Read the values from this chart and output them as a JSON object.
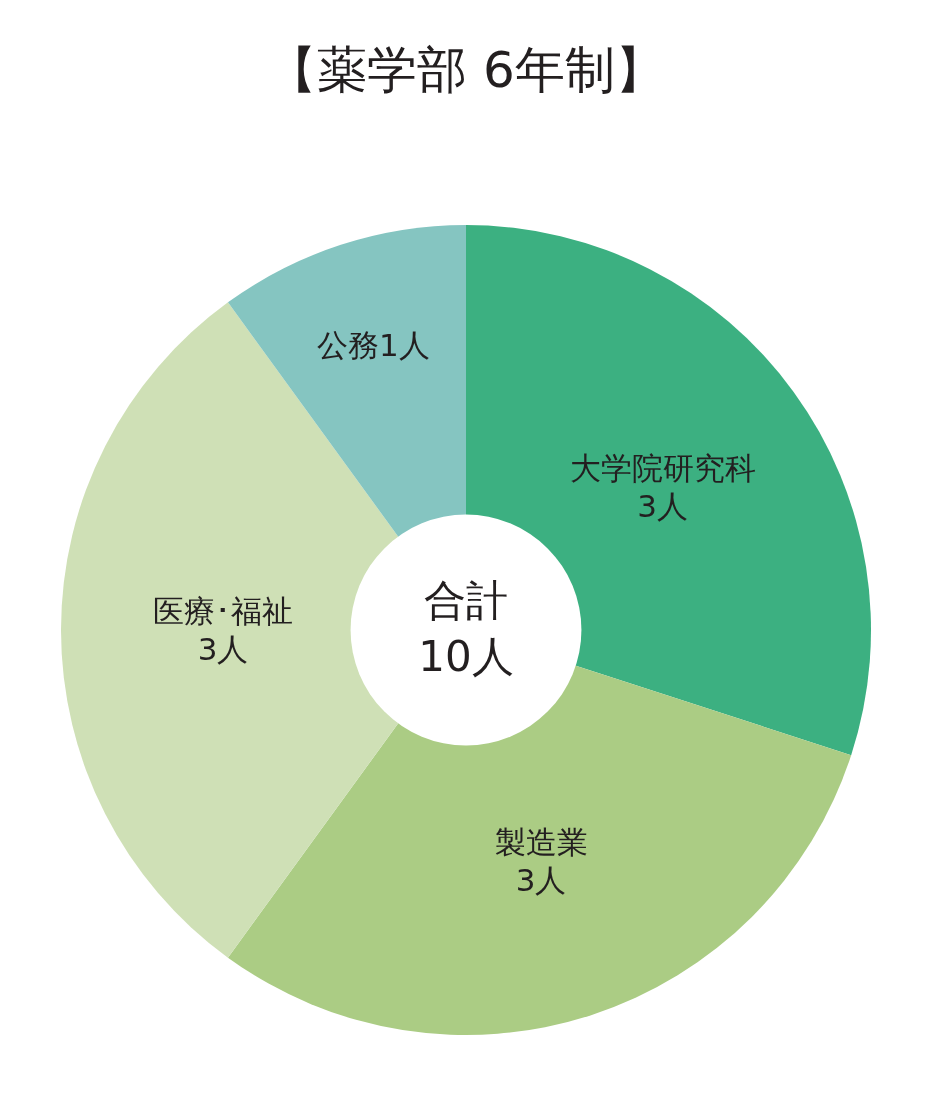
{
  "chart_data": {
    "type": "donut",
    "title": "【薬学部 6年制】",
    "categories": [
      "大学院研究科",
      "製造業",
      "医療･福祉",
      "公務"
    ],
    "values": [
      3,
      3,
      3,
      1
    ],
    "value_labels": [
      "3人",
      "3人",
      "3人",
      "1人"
    ],
    "colors": [
      "#3cb081",
      "#abcc84",
      "#cfe0b6",
      "#85c5c1"
    ],
    "annotations": [
      "合計\n10人"
    ]
  }
}
